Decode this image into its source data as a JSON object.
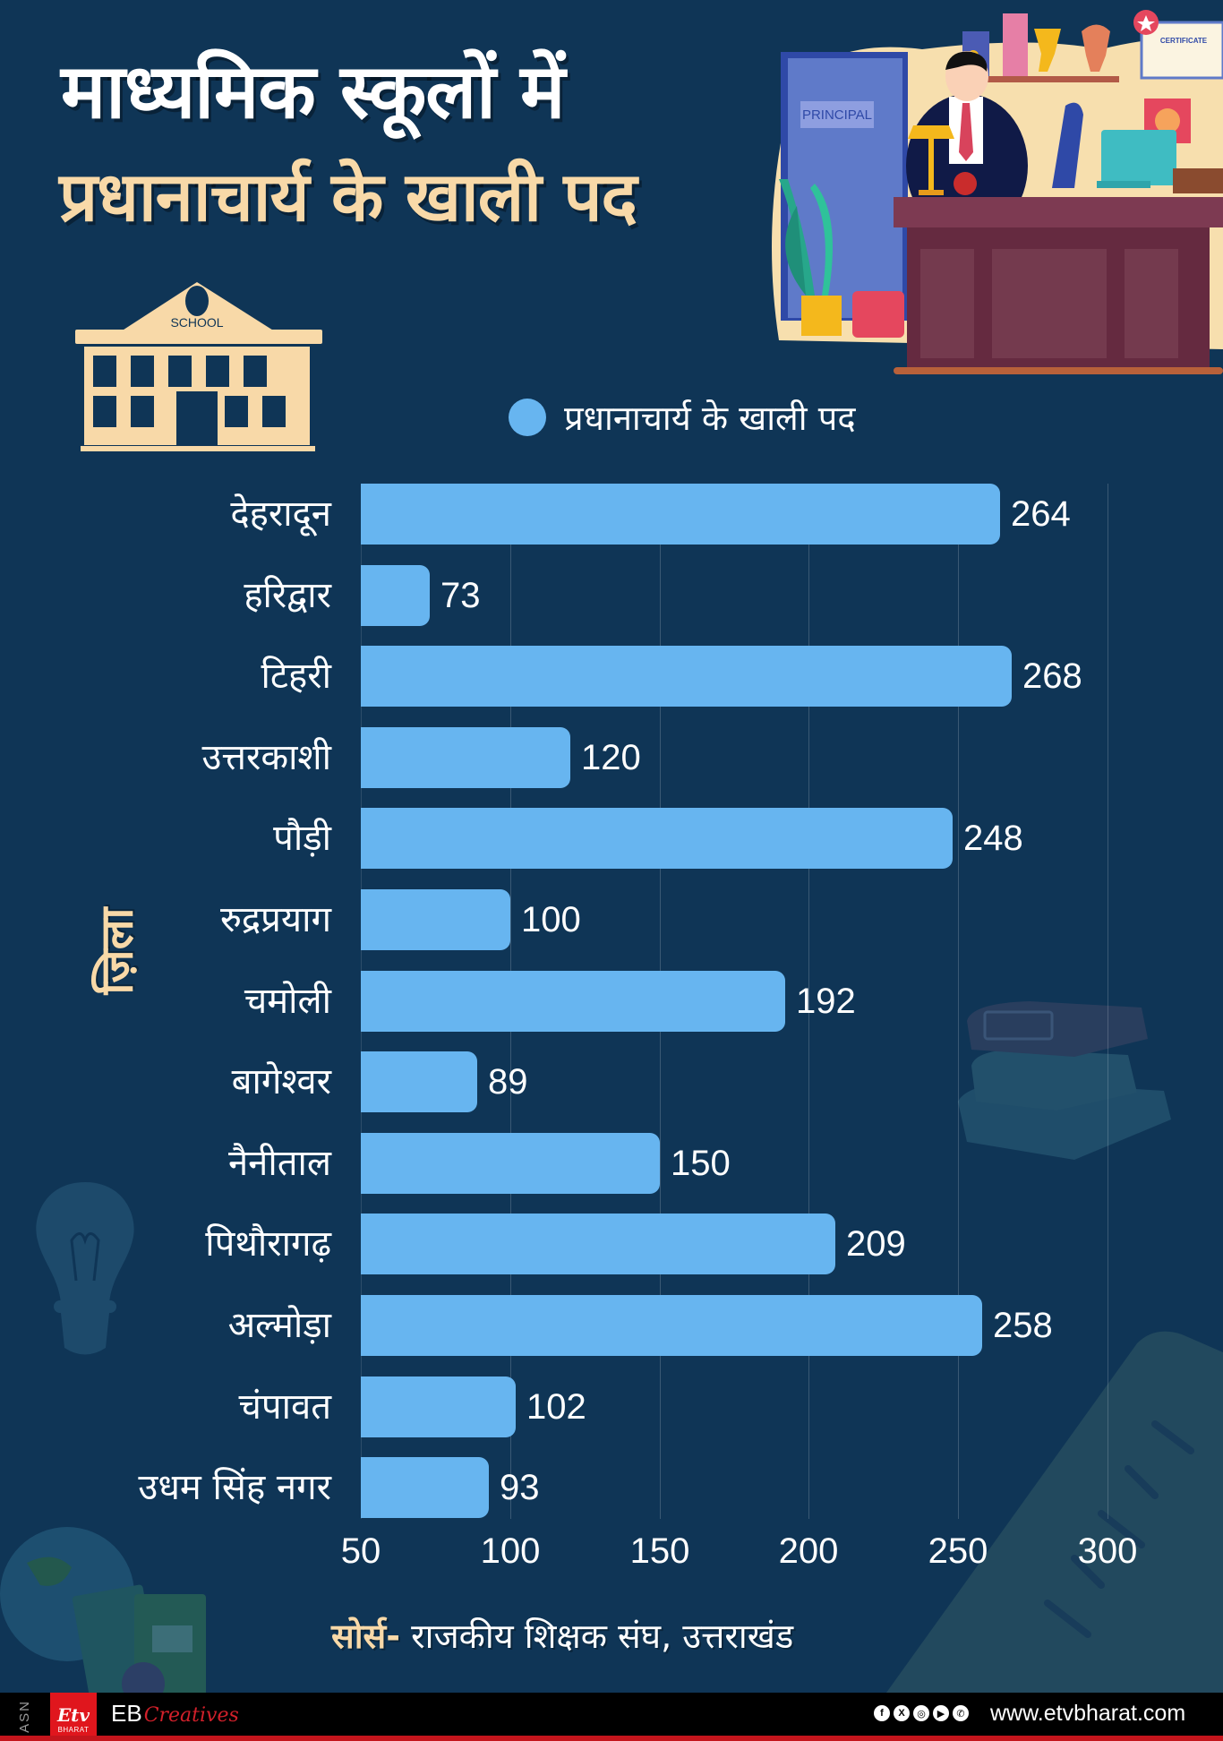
{
  "header": {
    "title_line1": "माध्यमिक स्कूलों में",
    "title_line2": "प्रधानाचार्य के खाली पद"
  },
  "illustration": {
    "door_sign": "PRINCIPAL",
    "certificate_label": "CERTIFICATE"
  },
  "school_icon": {
    "label": "SCHOOL"
  },
  "legend": {
    "label": "प्रधानाचार्य के खाली पद",
    "color": "#67b5f0"
  },
  "y_axis_title": "ज़िला",
  "source": {
    "key": "सोर्स-",
    "value": " राजकीय शिक्षक संघ, उत्तराखंड"
  },
  "footer": {
    "asn": "ASN",
    "logo_mark": "Etv",
    "logo_sub": "BHARAT",
    "eb": "EB",
    "creatives": "Creatives",
    "socials": [
      "facebook-icon",
      "x-icon",
      "instagram-icon",
      "youtube-icon",
      "whatsapp-icon"
    ],
    "social_glyphs": [
      "f",
      "X",
      "◎",
      "▶",
      "✆"
    ],
    "website": "www.etvbharat.com"
  },
  "colors": {
    "background": "#0f3556",
    "bar": "#67b5f0",
    "accent_cream": "#f8d9a8",
    "footer_red": "#c4151c"
  },
  "chart_data": {
    "type": "bar",
    "orientation": "horizontal",
    "title": "माध्यमिक स्कूलों में प्रधानाचार्य के खाली पद",
    "xlabel": "",
    "ylabel": "ज़िला",
    "categories": [
      "देहरादून",
      "हरिद्वार",
      "टिहरी",
      "उत्तरकाशी",
      "पौड़ी",
      "रुद्रप्रयाग",
      "चमोली",
      "बागेश्वर",
      "नैनीताल",
      "पिथौरागढ़",
      "अल्मोड़ा",
      "चंपावत",
      "उधम सिंह नगर"
    ],
    "series": [
      {
        "name": "प्रधानाचार्य के खाली पद",
        "values": [
          264,
          73,
          268,
          120,
          248,
          100,
          192,
          89,
          150,
          209,
          258,
          102,
          93
        ],
        "color": "#67b5f0"
      }
    ],
    "xlim": [
      50,
      300
    ],
    "x_ticks": [
      "50",
      "100",
      "150",
      "200",
      "250",
      "300"
    ],
    "grid": true,
    "legend_position": "top",
    "data_labels": true,
    "source": "सोर्स- राजकीय शिक्षक संघ, उत्तराखंड"
  }
}
